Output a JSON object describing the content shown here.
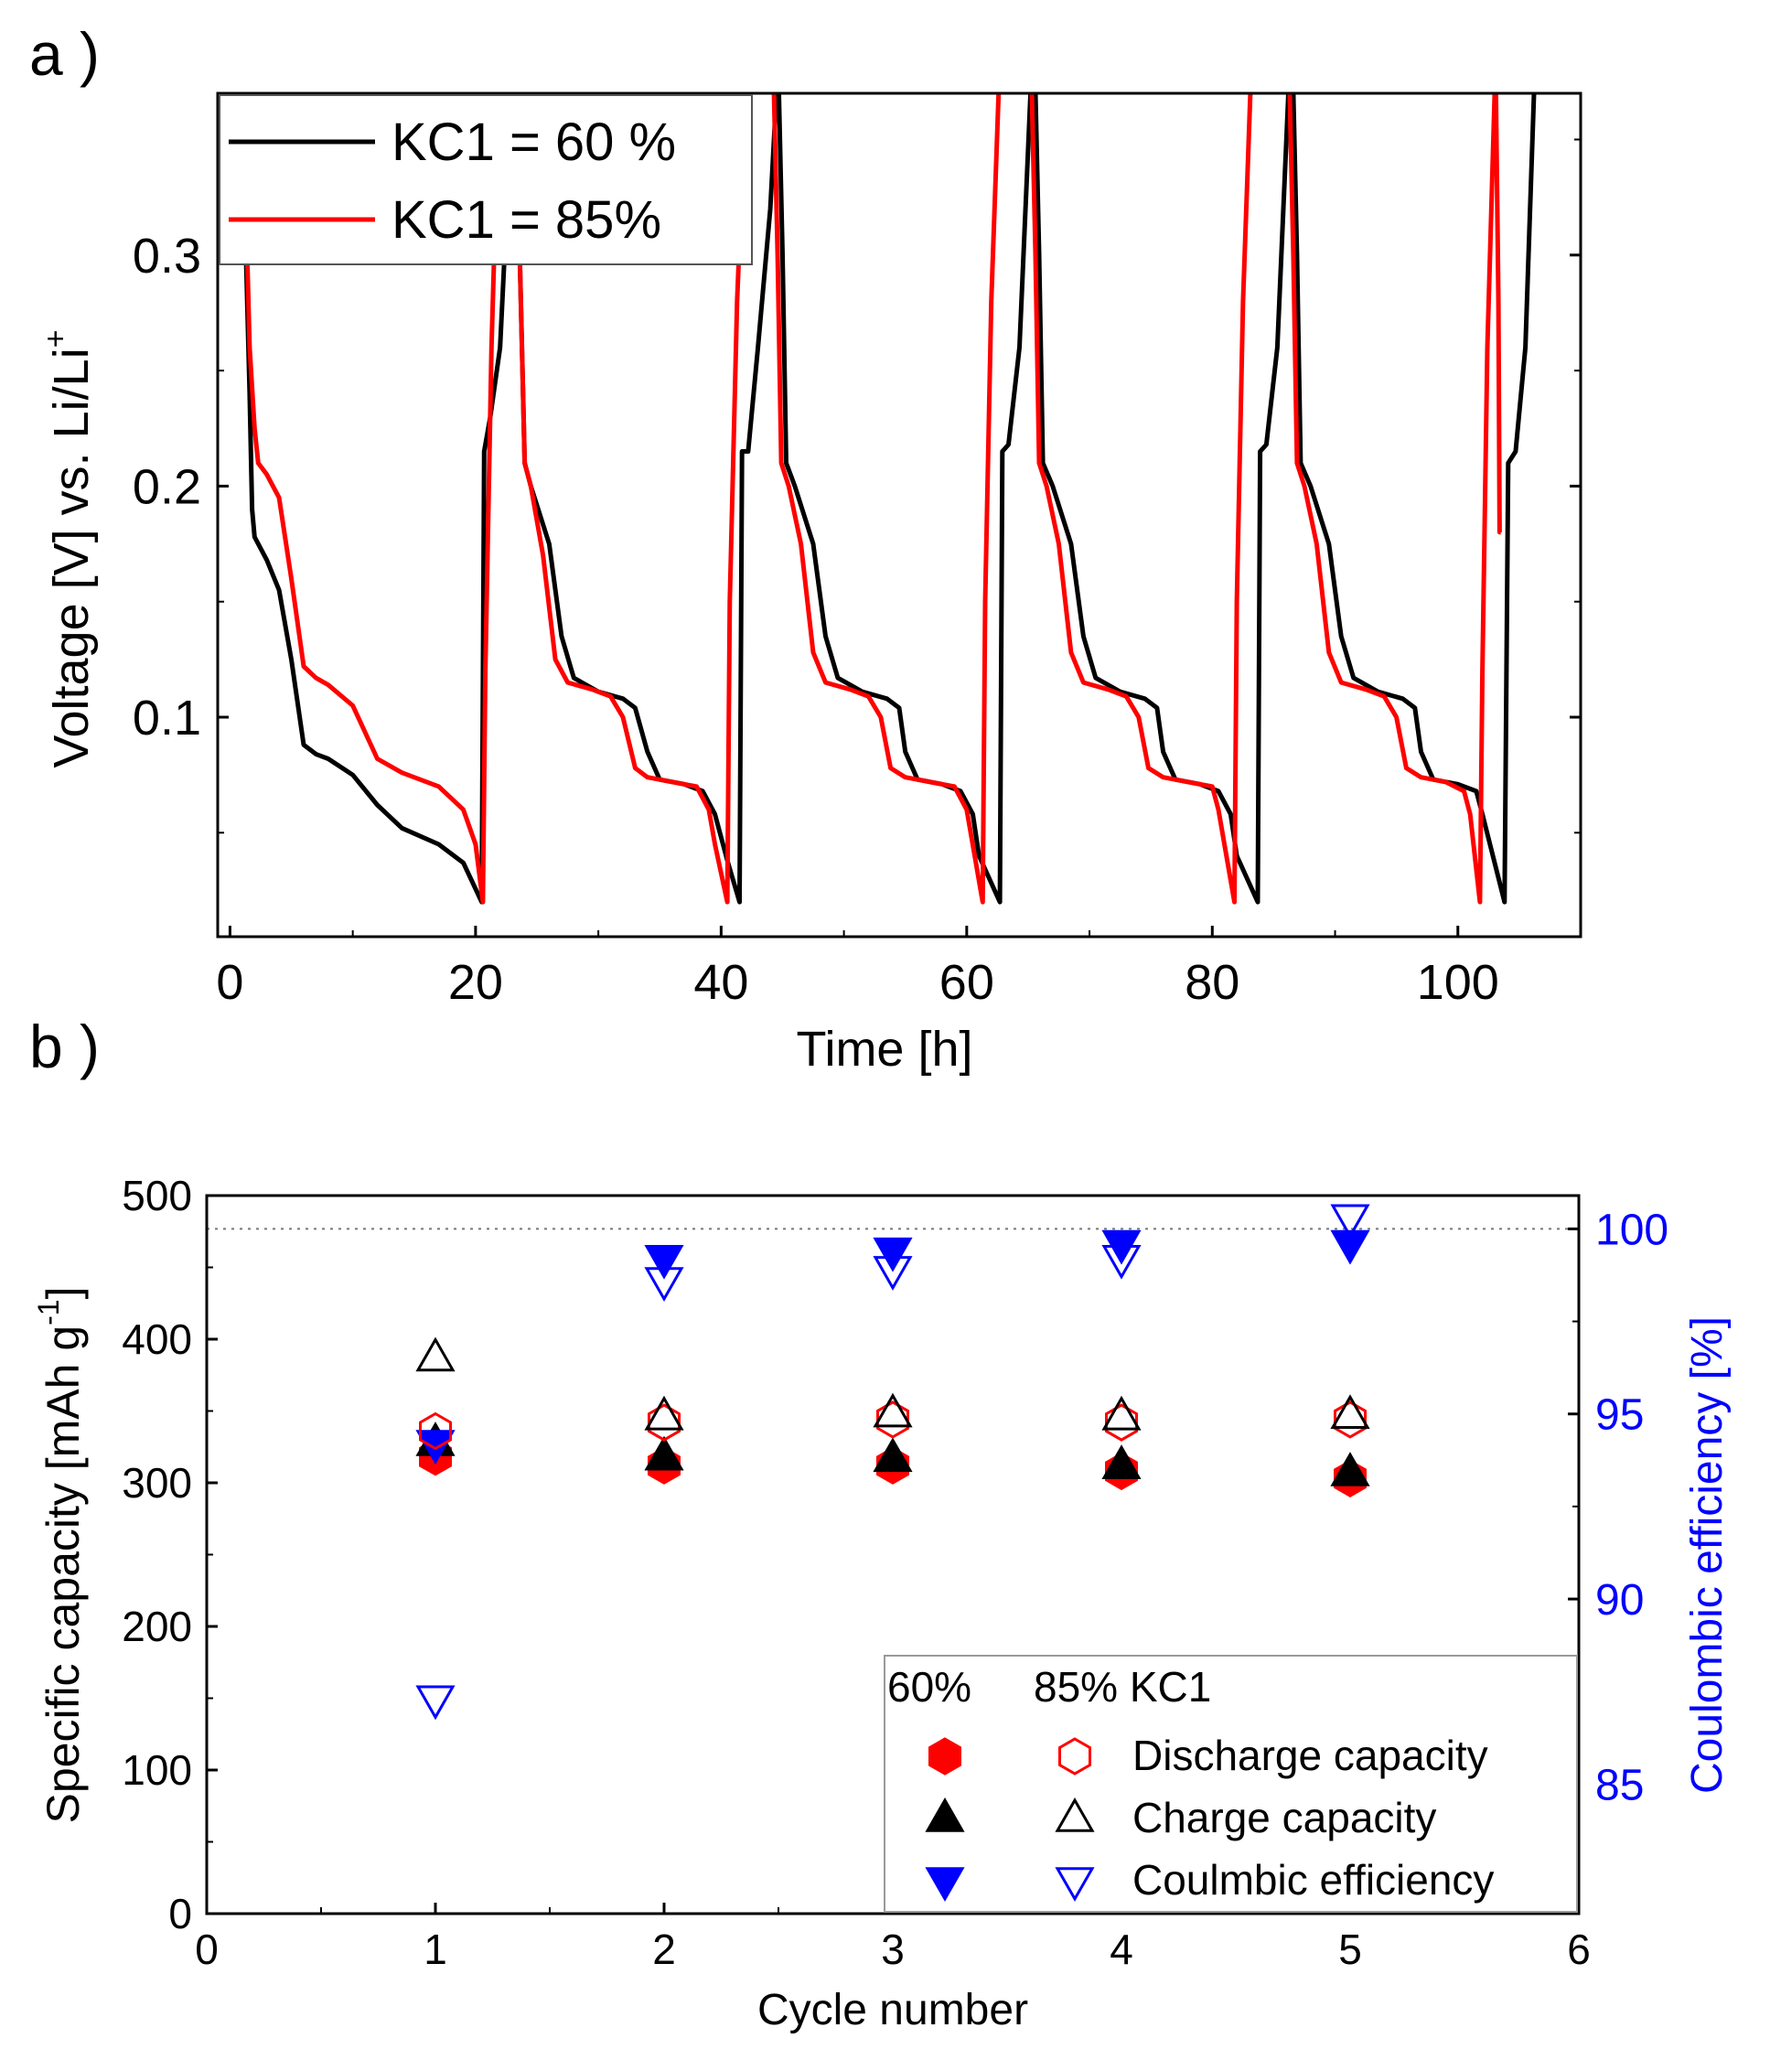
{
  "chart_data": [
    {
      "panel_label": "a )",
      "type": "line",
      "xlabel": "Time [h]",
      "ylabel": "Voltage [V] vs. Li/Li⁺",
      "ylabel_main": "Voltage [V] vs. Li/Li",
      "ylabel_sup": "+",
      "xlim": [
        -1,
        110
      ],
      "ylim": [
        0.005,
        0.37
      ],
      "xticks": [
        0,
        20,
        40,
        60,
        80,
        100
      ],
      "xtick_labels": [
        "0",
        "20",
        "40",
        "60",
        "80",
        "100"
      ],
      "yticks": [
        0.1,
        0.2,
        0.3
      ],
      "ytick_labels": [
        "0.1",
        "0.2",
        "0.3"
      ],
      "legend": {
        "position": "top-left",
        "entries": [
          "KC1 = 60 %",
          "KC1 = 85%"
        ]
      },
      "series": [
        {
          "name": "KC1 = 60 %",
          "color": "#000000",
          "points": [
            [
              1.0,
              0.37
            ],
            [
              1.3,
              0.3
            ],
            [
              1.6,
              0.24
            ],
            [
              1.8,
              0.19
            ],
            [
              2.0,
              0.178
            ],
            [
              3.0,
              0.168
            ],
            [
              4.0,
              0.155
            ],
            [
              5.0,
              0.125
            ],
            [
              6.0,
              0.088
            ],
            [
              7.0,
              0.084
            ],
            [
              8.0,
              0.082
            ],
            [
              10.0,
              0.075
            ],
            [
              12.0,
              0.062
            ],
            [
              14.0,
              0.052
            ],
            [
              17.0,
              0.045
            ],
            [
              19.0,
              0.037
            ],
            [
              20.5,
              0.02
            ],
            [
              20.7,
              0.215
            ],
            [
              21.2,
              0.23
            ],
            [
              22.0,
              0.26
            ],
            [
              23.0,
              0.37
            ],
            [
              null,
              null
            ],
            [
              23.3,
              0.37
            ],
            [
              23.6,
              0.3
            ],
            [
              24.0,
              0.21
            ],
            [
              24.5,
              0.2
            ],
            [
              26.0,
              0.175
            ],
            [
              27.0,
              0.135
            ],
            [
              28.0,
              0.117
            ],
            [
              30.0,
              0.111
            ],
            [
              32.0,
              0.108
            ],
            [
              33.0,
              0.104
            ],
            [
              34.0,
              0.085
            ],
            [
              35.0,
              0.073
            ],
            [
              37.0,
              0.071
            ],
            [
              38.5,
              0.068
            ],
            [
              39.5,
              0.058
            ],
            [
              40.5,
              0.038
            ],
            [
              41.5,
              0.02
            ],
            [
              41.7,
              0.215
            ],
            [
              42.2,
              0.215
            ],
            [
              43.0,
              0.26
            ],
            [
              44.0,
              0.32
            ],
            [
              44.5,
              0.37
            ],
            [
              null,
              null
            ],
            [
              44.7,
              0.37
            ],
            [
              45.0,
              0.3
            ],
            [
              45.3,
              0.21
            ],
            [
              46.0,
              0.2
            ],
            [
              47.5,
              0.175
            ],
            [
              48.5,
              0.135
            ],
            [
              49.5,
              0.117
            ],
            [
              51.5,
              0.111
            ],
            [
              53.5,
              0.108
            ],
            [
              54.5,
              0.104
            ],
            [
              55.0,
              0.085
            ],
            [
              56.0,
              0.073
            ],
            [
              58.0,
              0.071
            ],
            [
              59.5,
              0.068
            ],
            [
              60.5,
              0.058
            ],
            [
              61.0,
              0.04
            ],
            [
              62.7,
              0.02
            ],
            [
              62.9,
              0.215
            ],
            [
              63.4,
              0.218
            ],
            [
              64.3,
              0.26
            ],
            [
              65.2,
              0.37
            ],
            [
              null,
              null
            ],
            [
              65.6,
              0.37
            ],
            [
              65.9,
              0.3
            ],
            [
              66.2,
              0.21
            ],
            [
              67.0,
              0.2
            ],
            [
              68.5,
              0.175
            ],
            [
              69.5,
              0.135
            ],
            [
              70.5,
              0.117
            ],
            [
              72.5,
              0.111
            ],
            [
              74.5,
              0.108
            ],
            [
              75.5,
              0.104
            ],
            [
              76.0,
              0.085
            ],
            [
              77.0,
              0.073
            ],
            [
              79.0,
              0.071
            ],
            [
              80.5,
              0.068
            ],
            [
              81.5,
              0.058
            ],
            [
              82.0,
              0.04
            ],
            [
              83.7,
              0.02
            ],
            [
              83.9,
              0.215
            ],
            [
              84.4,
              0.218
            ],
            [
              85.3,
              0.26
            ],
            [
              86.2,
              0.37
            ],
            [
              null,
              null
            ],
            [
              86.6,
              0.37
            ],
            [
              86.9,
              0.3
            ],
            [
              87.2,
              0.21
            ],
            [
              88.0,
              0.2
            ],
            [
              89.5,
              0.175
            ],
            [
              90.5,
              0.135
            ],
            [
              91.5,
              0.117
            ],
            [
              93.5,
              0.111
            ],
            [
              95.5,
              0.108
            ],
            [
              96.5,
              0.104
            ],
            [
              97.0,
              0.085
            ],
            [
              98.0,
              0.073
            ],
            [
              100.0,
              0.071
            ],
            [
              101.5,
              0.068
            ],
            [
              102.0,
              0.058
            ],
            [
              103.8,
              0.02
            ],
            [
              104.1,
              0.21
            ],
            [
              104.7,
              0.215
            ],
            [
              105.5,
              0.26
            ],
            [
              106.2,
              0.37
            ]
          ]
        },
        {
          "name": "KC1 = 85%",
          "color": "#ff0000",
          "points": [
            [
              1.0,
              0.37
            ],
            [
              1.3,
              0.32
            ],
            [
              1.6,
              0.26
            ],
            [
              2.0,
              0.225
            ],
            [
              2.3,
              0.21
            ],
            [
              3.0,
              0.205
            ],
            [
              4.0,
              0.195
            ],
            [
              5.0,
              0.16
            ],
            [
              6.0,
              0.122
            ],
            [
              7.0,
              0.117
            ],
            [
              8.0,
              0.114
            ],
            [
              10.0,
              0.105
            ],
            [
              12.0,
              0.082
            ],
            [
              14.0,
              0.076
            ],
            [
              17.0,
              0.07
            ],
            [
              19.0,
              0.06
            ],
            [
              20.0,
              0.045
            ],
            [
              20.6,
              0.02
            ],
            [
              20.8,
              0.12
            ],
            [
              21.3,
              0.26
            ],
            [
              21.9,
              0.37
            ],
            [
              null,
              null
            ],
            [
              23.3,
              0.37
            ],
            [
              23.6,
              0.3
            ],
            [
              24.0,
              0.21
            ],
            [
              24.5,
              0.2
            ],
            [
              25.5,
              0.17
            ],
            [
              26.5,
              0.125
            ],
            [
              27.5,
              0.115
            ],
            [
              29.5,
              0.112
            ],
            [
              31.0,
              0.109
            ],
            [
              32.0,
              0.1
            ],
            [
              33.0,
              0.078
            ],
            [
              34.0,
              0.074
            ],
            [
              36.0,
              0.072
            ],
            [
              38.0,
              0.07
            ],
            [
              39.0,
              0.06
            ],
            [
              39.5,
              0.045
            ],
            [
              40.5,
              0.02
            ],
            [
              40.7,
              0.15
            ],
            [
              41.3,
              0.28
            ],
            [
              42.0,
              0.37
            ],
            [
              null,
              null
            ],
            [
              44.3,
              0.37
            ],
            [
              44.6,
              0.3
            ],
            [
              44.9,
              0.21
            ],
            [
              45.5,
              0.2
            ],
            [
              46.5,
              0.175
            ],
            [
              47.5,
              0.128
            ],
            [
              48.5,
              0.115
            ],
            [
              50.5,
              0.112
            ],
            [
              52.0,
              0.109
            ],
            [
              53.0,
              0.1
            ],
            [
              53.8,
              0.078
            ],
            [
              55.0,
              0.074
            ],
            [
              57.0,
              0.072
            ],
            [
              59.0,
              0.07
            ],
            [
              60.0,
              0.06
            ],
            [
              61.3,
              0.02
            ],
            [
              61.5,
              0.15
            ],
            [
              62.0,
              0.28
            ],
            [
              62.6,
              0.37
            ],
            [
              null,
              null
            ],
            [
              65.3,
              0.37
            ],
            [
              65.6,
              0.3
            ],
            [
              65.9,
              0.21
            ],
            [
              66.5,
              0.2
            ],
            [
              67.5,
              0.175
            ],
            [
              68.5,
              0.128
            ],
            [
              69.5,
              0.115
            ],
            [
              71.5,
              0.112
            ],
            [
              73.0,
              0.109
            ],
            [
              74.0,
              0.1
            ],
            [
              74.8,
              0.078
            ],
            [
              76.0,
              0.074
            ],
            [
              78.0,
              0.072
            ],
            [
              80.0,
              0.07
            ],
            [
              80.5,
              0.06
            ],
            [
              81.8,
              0.02
            ],
            [
              82.0,
              0.15
            ],
            [
              82.5,
              0.28
            ],
            [
              83.1,
              0.37
            ],
            [
              null,
              null
            ],
            [
              86.3,
              0.37
            ],
            [
              86.6,
              0.3
            ],
            [
              86.9,
              0.21
            ],
            [
              87.5,
              0.2
            ],
            [
              88.5,
              0.175
            ],
            [
              89.5,
              0.128
            ],
            [
              90.5,
              0.115
            ],
            [
              92.5,
              0.112
            ],
            [
              94.0,
              0.109
            ],
            [
              95.0,
              0.1
            ],
            [
              95.8,
              0.078
            ],
            [
              97.0,
              0.074
            ],
            [
              99.0,
              0.072
            ],
            [
              100.5,
              0.068
            ],
            [
              101.0,
              0.058
            ],
            [
              101.8,
              0.02
            ],
            [
              102.0,
              0.12
            ],
            [
              102.4,
              0.26
            ],
            [
              103.0,
              0.37
            ],
            [
              null,
              null
            ],
            [
              103.1,
              0.37
            ],
            [
              103.3,
              0.28
            ],
            [
              103.4,
              0.18
            ],
            [
              103.5,
              0.18
            ]
          ]
        }
      ]
    },
    {
      "panel_label": "b )",
      "type": "scatter",
      "xlabel": "Cycle number",
      "ylabel": "Specific capacity [mAh g⁻¹]",
      "ylabel_main": "Specific capacity [mAh g",
      "ylabel_sup": "-1",
      "ylabel_end": "]",
      "y2label": "Coulombic efficiency [%]",
      "xlim": [
        0,
        6
      ],
      "ylim": [
        0,
        500
      ],
      "y2lim": [
        81.5,
        100.9
      ],
      "xticks": [
        0,
        1,
        2,
        3,
        4,
        5,
        6
      ],
      "xtick_labels": [
        "0",
        "1",
        "2",
        "3",
        "4",
        "5",
        "6"
      ],
      "yticks": [
        0,
        100,
        200,
        300,
        400,
        500
      ],
      "ytick_labels": [
        "0",
        "100",
        "200",
        "300",
        "400",
        "500"
      ],
      "y2ticks": [
        85,
        90,
        95,
        100
      ],
      "y2tick_labels": [
        "85",
        "90",
        "95",
        "100"
      ],
      "reference_line": {
        "axis": "y2",
        "value": 100,
        "style": "dotted"
      },
      "legend": {
        "position": "bottom-right",
        "header": [
          "60%",
          "85% KC1"
        ],
        "entries": [
          "Discharge capacity",
          "Charge capacity",
          "Coulmbic efficiency"
        ]
      },
      "series": [
        {
          "name": "Discharge capacity (60%)",
          "marker": "hexagon",
          "filled": true,
          "color": "#ff0000",
          "axis": "y",
          "x": [
            1,
            2,
            3,
            4,
            5
          ],
          "y": [
            318,
            312,
            312,
            308,
            303
          ]
        },
        {
          "name": "Discharge capacity (85%)",
          "marker": "hexagon",
          "filled": false,
          "color": "#ff0000",
          "axis": "y",
          "x": [
            1,
            2,
            3,
            4,
            5
          ],
          "y": [
            336,
            342,
            344,
            342,
            344
          ]
        },
        {
          "name": "Charge capacity (60%)",
          "marker": "triangle-up",
          "filled": true,
          "color": "#000000",
          "axis": "y",
          "x": [
            1,
            2,
            3,
            4,
            5
          ],
          "y": [
            328,
            318,
            317,
            312,
            307
          ]
        },
        {
          "name": "Charge capacity (85%)",
          "marker": "triangle-up",
          "filled": false,
          "color": "#000000",
          "axis": "y",
          "x": [
            1,
            2,
            3,
            4,
            5
          ],
          "y": [
            387,
            346,
            348,
            346,
            347
          ]
        },
        {
          "name": "Coulmbic efficiency (60%)",
          "marker": "triangle-down",
          "filled": true,
          "color": "#0000ff",
          "axis": "y2",
          "x": [
            1,
            2,
            3,
            4,
            5
          ],
          "y": [
            94.2,
            99.2,
            99.4,
            99.6,
            99.6
          ]
        },
        {
          "name": "Coulmbic efficiency (85%)",
          "marker": "triangle-down",
          "filled": false,
          "color": "#0000ff",
          "axis": "y2",
          "x": [
            1,
            2,
            3,
            4,
            5
          ],
          "y": [
            87.3,
            98.6,
            98.9,
            99.2,
            100.3
          ]
        }
      ]
    }
  ]
}
